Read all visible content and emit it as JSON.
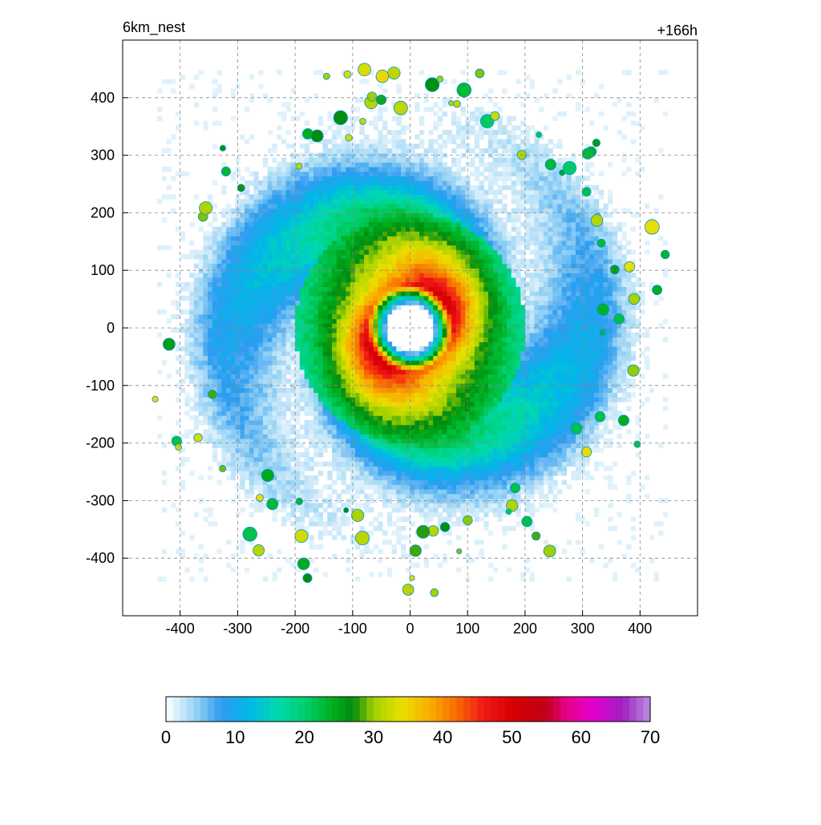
{
  "chart_data": {
    "type": "heatmap",
    "title_left": "6km_nest",
    "title_right": "+166h",
    "xlim": [
      -500,
      500
    ],
    "ylim": [
      -500,
      500
    ],
    "x_ticks": [
      -400,
      -300,
      -200,
      -100,
      0,
      100,
      200,
      300,
      400
    ],
    "y_ticks": [
      400,
      300,
      200,
      100,
      0,
      -100,
      -200,
      -300,
      -400
    ],
    "grid": true,
    "grid_style": "dashed",
    "colorbar": {
      "orientation": "horizontal",
      "position": "bottom",
      "range": [
        0,
        70
      ],
      "ticks": [
        0,
        10,
        20,
        30,
        40,
        50,
        60,
        70
      ],
      "stops": [
        {
          "value": 0,
          "color": "#ffffff"
        },
        {
          "value": 4,
          "color": "#9fd6f5"
        },
        {
          "value": 8,
          "color": "#2e9cf0"
        },
        {
          "value": 12,
          "color": "#00b7e8"
        },
        {
          "value": 16,
          "color": "#00d9b0"
        },
        {
          "value": 20,
          "color": "#00d070"
        },
        {
          "value": 24,
          "color": "#00b020"
        },
        {
          "value": 27,
          "color": "#008a10"
        },
        {
          "value": 30,
          "color": "#a0d000"
        },
        {
          "value": 34,
          "color": "#e8e000"
        },
        {
          "value": 38,
          "color": "#f8b000"
        },
        {
          "value": 42,
          "color": "#f86a00"
        },
        {
          "value": 46,
          "color": "#f01818"
        },
        {
          "value": 50,
          "color": "#d80000"
        },
        {
          "value": 55,
          "color": "#c00018"
        },
        {
          "value": 58,
          "color": "#e8008c"
        },
        {
          "value": 62,
          "color": "#e000d0"
        },
        {
          "value": 66,
          "color": "#a020c0"
        },
        {
          "value": 70,
          "color": "#b890e0"
        }
      ]
    },
    "field": {
      "description_values": "wind speed field of a tropical cyclone",
      "eye_center": [
        0,
        0
      ],
      "eye_radius": 40,
      "peak_value": 52,
      "peak_radius": 75
    }
  }
}
